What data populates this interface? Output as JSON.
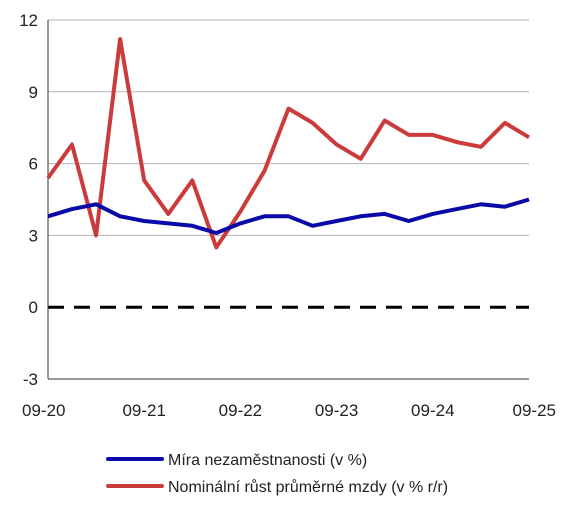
{
  "chart_data": {
    "type": "line",
    "title": "",
    "xlabel": "",
    "ylabel": "",
    "ylim": [
      -3,
      12
    ],
    "yticks": [
      -3,
      0,
      3,
      6,
      9,
      12
    ],
    "xlim": [
      0,
      20
    ],
    "xticks": [
      {
        "x": 0,
        "label": "09-20"
      },
      {
        "x": 4,
        "label": "09-21"
      },
      {
        "x": 8,
        "label": "09-22"
      },
      {
        "x": 12,
        "label": "09-23"
      },
      {
        "x": 16,
        "label": "09-24"
      },
      {
        "x": 20,
        "label": "09-25"
      }
    ],
    "grid": "horizontal",
    "reference_line": {
      "y": 0,
      "style": "dashed",
      "color": "#000000"
    },
    "legend_position": "bottom",
    "series": [
      {
        "name": "Míra nezaměstnanosti (v %)",
        "color": "#0a0aa8",
        "x": [
          0,
          1,
          2,
          3,
          4,
          5,
          6,
          7,
          8,
          9,
          10,
          11,
          12,
          13,
          14,
          15,
          16,
          17,
          18,
          19,
          20
        ],
        "values": [
          3.8,
          4.1,
          4.3,
          3.8,
          3.6,
          3.5,
          3.4,
          3.1,
          3.5,
          3.8,
          3.8,
          3.4,
          3.6,
          3.8,
          3.9,
          3.6,
          3.9,
          4.1,
          4.3,
          4.2,
          4.5
        ]
      },
      {
        "name": "Nominální růst průměrné mzdy (v % r/r)",
        "color": "#cc3b3b",
        "x": [
          0,
          1,
          2,
          3,
          4,
          5,
          6,
          7,
          8,
          9,
          10,
          11,
          12,
          13,
          14,
          15,
          16,
          17,
          18,
          19,
          20
        ],
        "values": [
          5.4,
          6.8,
          3.0,
          11.2,
          5.3,
          3.9,
          5.3,
          2.5,
          4.0,
          5.7,
          8.3,
          7.7,
          6.8,
          6.2,
          7.8,
          7.2,
          7.2,
          6.9,
          6.7,
          7.7,
          7.1
        ]
      }
    ]
  },
  "legend": {
    "items": [
      {
        "label": "Míra nezaměstnanosti (v %)",
        "color": "#0a0aa8"
      },
      {
        "label": "Nominální růst průměrné mzdy (v % r/r)",
        "color": "#cc3b3b"
      }
    ]
  }
}
